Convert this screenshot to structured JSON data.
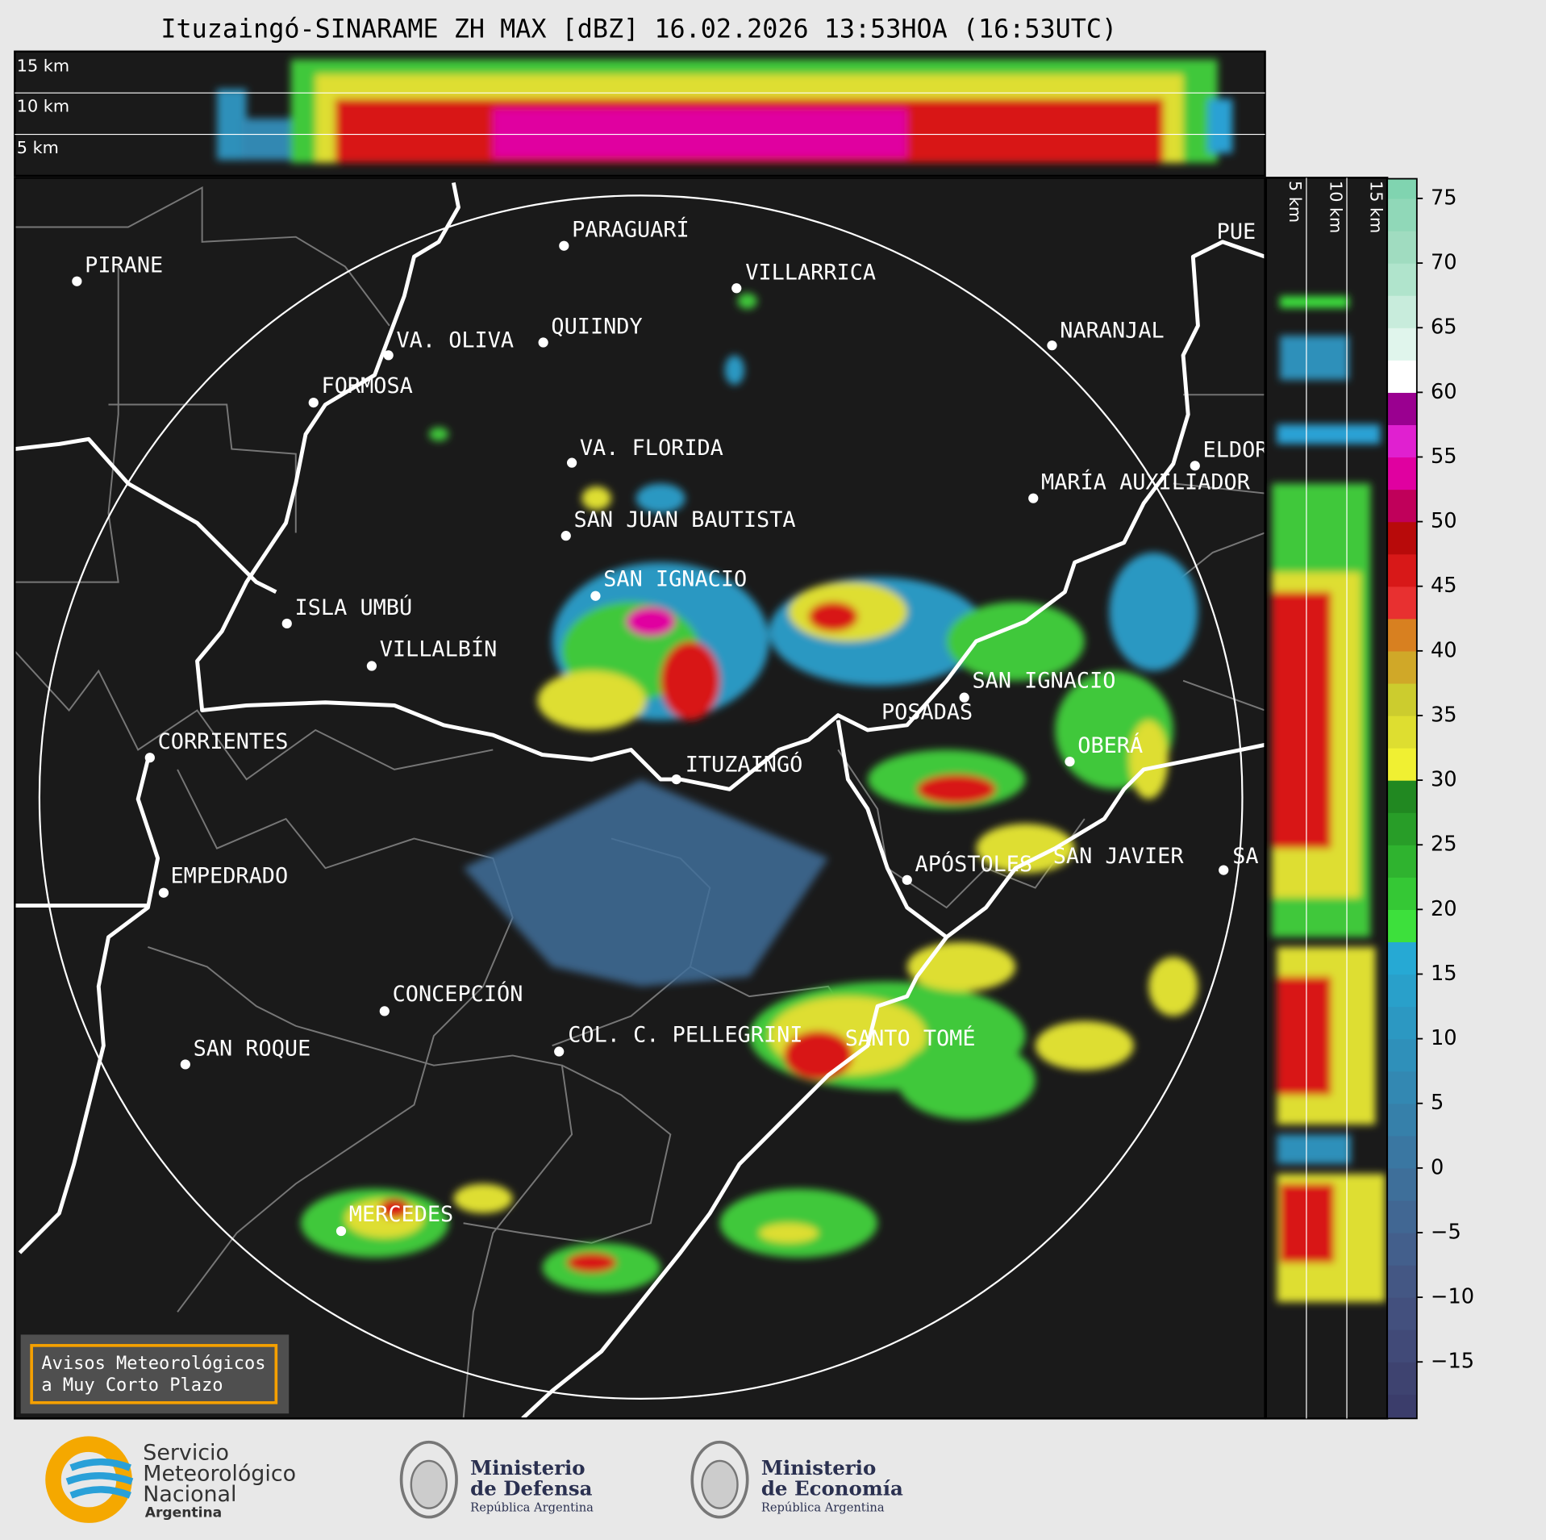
{
  "chart_data": {
    "type": "radar-map",
    "title": "Ituzaingó-SINARAME ZH MAX [dBZ] 16.02.2026 13:53HOA (16:53UTC)",
    "top_panel_labels": [
      "15 km",
      "10 km",
      "5 km"
    ],
    "side_panel_labels": [
      "5 km",
      "10 km",
      "15 km"
    ],
    "cities": [
      "PIRANE",
      "PARAGUARÍ",
      "VILLARRICA",
      "QUIINDY",
      "VA. OLIVA",
      "NARANJAL",
      "FORMOSA",
      "VA. FLORIDA",
      "ELDOR",
      "MARÍA AUXILIADOR",
      "SAN JUAN BAUTISTA",
      "SAN IGNACIO",
      "ISLA UMBÚ",
      "VILLALBÍN",
      "SAN IGNACIO",
      "POSADAS",
      "CORRIENTES",
      "ITUZAINGÓ",
      "OBERÁ",
      "EMPEDRADO",
      "APÓSTOLES",
      "SAN JAVIER",
      "SA",
      "CONCEPCIÓN",
      "COL. C. PELLEGRINI",
      "SANTO TOMÉ",
      "SAN ROQUE",
      "MERCEDES",
      "PUE"
    ],
    "colorbar": {
      "clim": [
        -20,
        77.5
      ],
      "ticks": [
        {
          "value": -15,
          "label": "−15"
        },
        {
          "value": -10,
          "label": "−10"
        },
        {
          "value": -5,
          "label": "−5"
        },
        0,
        5,
        10,
        15,
        20,
        25,
        30,
        35,
        40,
        45,
        50,
        55,
        60,
        65,
        70,
        75
      ],
      "colors": [
        "#3b3d6b",
        "#3e4370",
        "#414a78",
        "#43507e",
        "#445784",
        "#435f8c",
        "#416793",
        "#3e6f9a",
        "#3a77a2",
        "#3680aa",
        "#3388b2",
        "#2f90ba",
        "#2c98c2",
        "#29a0ca",
        "#26a9d4",
        "#3de03c",
        "#35c835",
        "#2fb32f",
        "#289d28",
        "#218821",
        "#f0f032",
        "#dede30",
        "#cccc2e",
        "#d0a828",
        "#d88020",
        "#e83030",
        "#d81818",
        "#b80a0a",
        "#c0005a",
        "#e000a0",
        "#e020d0",
        "#9a0090",
        "#ffffff",
        "#e0f5ec",
        "#c8ecdc",
        "#b0e4cc",
        "#a0dcc0",
        "#90d8b8",
        "#80d4b0"
      ]
    },
    "warning_box": [
      "Avisos Meteorológicos",
      "a Muy Corto Plazo"
    ],
    "logos": {
      "smn": [
        "Servicio",
        "Meteorológico",
        "Nacional",
        "Argentina"
      ],
      "defensa": [
        "Ministerio",
        "de Defensa",
        "República Argentina"
      ],
      "economia": [
        "Ministerio",
        "de Economía",
        "República Argentina"
      ]
    }
  }
}
